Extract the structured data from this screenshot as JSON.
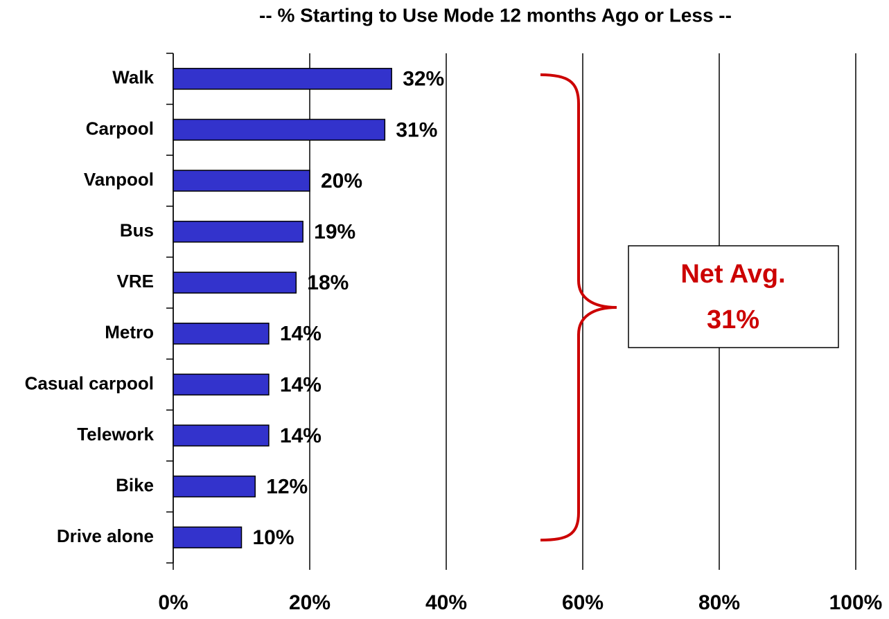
{
  "chart_data": {
    "type": "bar",
    "orientation": "horizontal",
    "title": "-- % Starting to Use Mode 12 months Ago or Less --",
    "categories": [
      "Walk",
      "Carpool",
      "Vanpool",
      "Bus",
      "VRE",
      "Metro",
      "Casual carpool",
      "Telework",
      "Bike",
      "Drive alone"
    ],
    "values": [
      32,
      31,
      20,
      19,
      18,
      14,
      14,
      14,
      12,
      10
    ],
    "value_labels": [
      "32%",
      "31%",
      "20%",
      "19%",
      "18%",
      "14%",
      "14%",
      "14%",
      "12%",
      "10%"
    ],
    "color": "#3333cc",
    "xlim": [
      0,
      100
    ],
    "xticks": [
      {
        "value": 0,
        "label": "0%"
      },
      {
        "value": 20,
        "label": "20%"
      },
      {
        "value": 40,
        "label": "40%"
      },
      {
        "value": 60,
        "label": "60%"
      },
      {
        "value": 80,
        "label": "80%"
      },
      {
        "value": 100,
        "label": "100%"
      }
    ],
    "grid": true,
    "annotations": [
      "Net Avg.",
      "31%"
    ],
    "annotation_color": "#cc0000"
  }
}
